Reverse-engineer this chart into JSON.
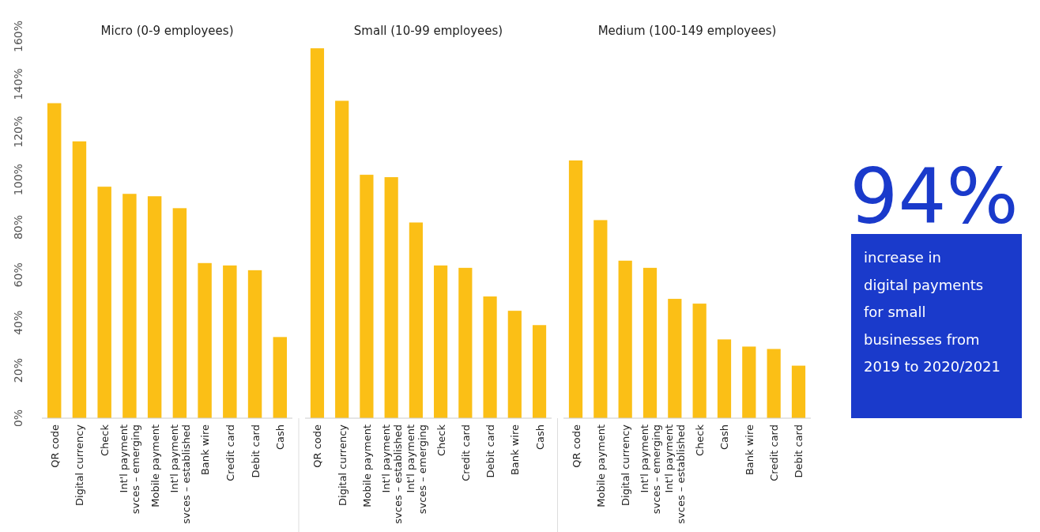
{
  "chart_data": [
    {
      "type": "bar",
      "title": "Micro (0-9 employees)",
      "categories": [
        "QR code",
        "Digital currency",
        "Check",
        "Int'l payment svces – emerging",
        "Mobile payment",
        "Int'l payment svces – established",
        "Bank wire",
        "Credit card",
        "Debit card",
        "Cash"
      ],
      "values": [
        132,
        116,
        97,
        94,
        93,
        88,
        65,
        64,
        62,
        34
      ],
      "color": "#fbbf16",
      "ylim": [
        0,
        160
      ],
      "yticks": [
        {
          "value": 0,
          "label": "0%"
        },
        {
          "value": 20,
          "label": "20%"
        },
        {
          "value": 40,
          "label": "40%"
        },
        {
          "value": 60,
          "label": "60%"
        },
        {
          "value": 80,
          "label": "80%"
        },
        {
          "value": 100,
          "label": "100%"
        },
        {
          "value": 120,
          "label": "120%"
        },
        {
          "value": 140,
          "label": "140%"
        },
        {
          "value": 160,
          "label": "160%"
        }
      ],
      "grid": false
    },
    {
      "type": "bar",
      "title": "Small (10-99 employees)",
      "categories": [
        "QR code",
        "Digital currency",
        "Mobile payment",
        "Int'l payment svces – established",
        "Int'l payment svces – emerging",
        "Check",
        "Credit card",
        "Debit card",
        "Bank wire",
        "Cash"
      ],
      "values": [
        155,
        133,
        102,
        101,
        82,
        64,
        63,
        51,
        45,
        39
      ],
      "color": "#fbbf16",
      "ylim": [
        0,
        160
      ],
      "tick_labels": "x",
      "grid": false
    },
    {
      "type": "bar",
      "title": "Medium (100-149 employees)",
      "categories": [
        "QR code",
        "Mobile payment",
        "Digital currency",
        "Int'l payment svces – emerging",
        "Int'l payment svces – established",
        "Check",
        "Cash",
        "Bank wire",
        "Credit card",
        "Debit card"
      ],
      "values": [
        108,
        83,
        66,
        63,
        50,
        48,
        33,
        30,
        29,
        22
      ],
      "color": "#fbbf16",
      "ylim": [
        0,
        160
      ],
      "tick_labels": "x",
      "grid": false
    },
    {
      "type": "other",
      "title": "94%",
      "annotations": [
        "increase in digital payments for small businesses from 2019 to 2020/2021"
      ]
    }
  ]
}
